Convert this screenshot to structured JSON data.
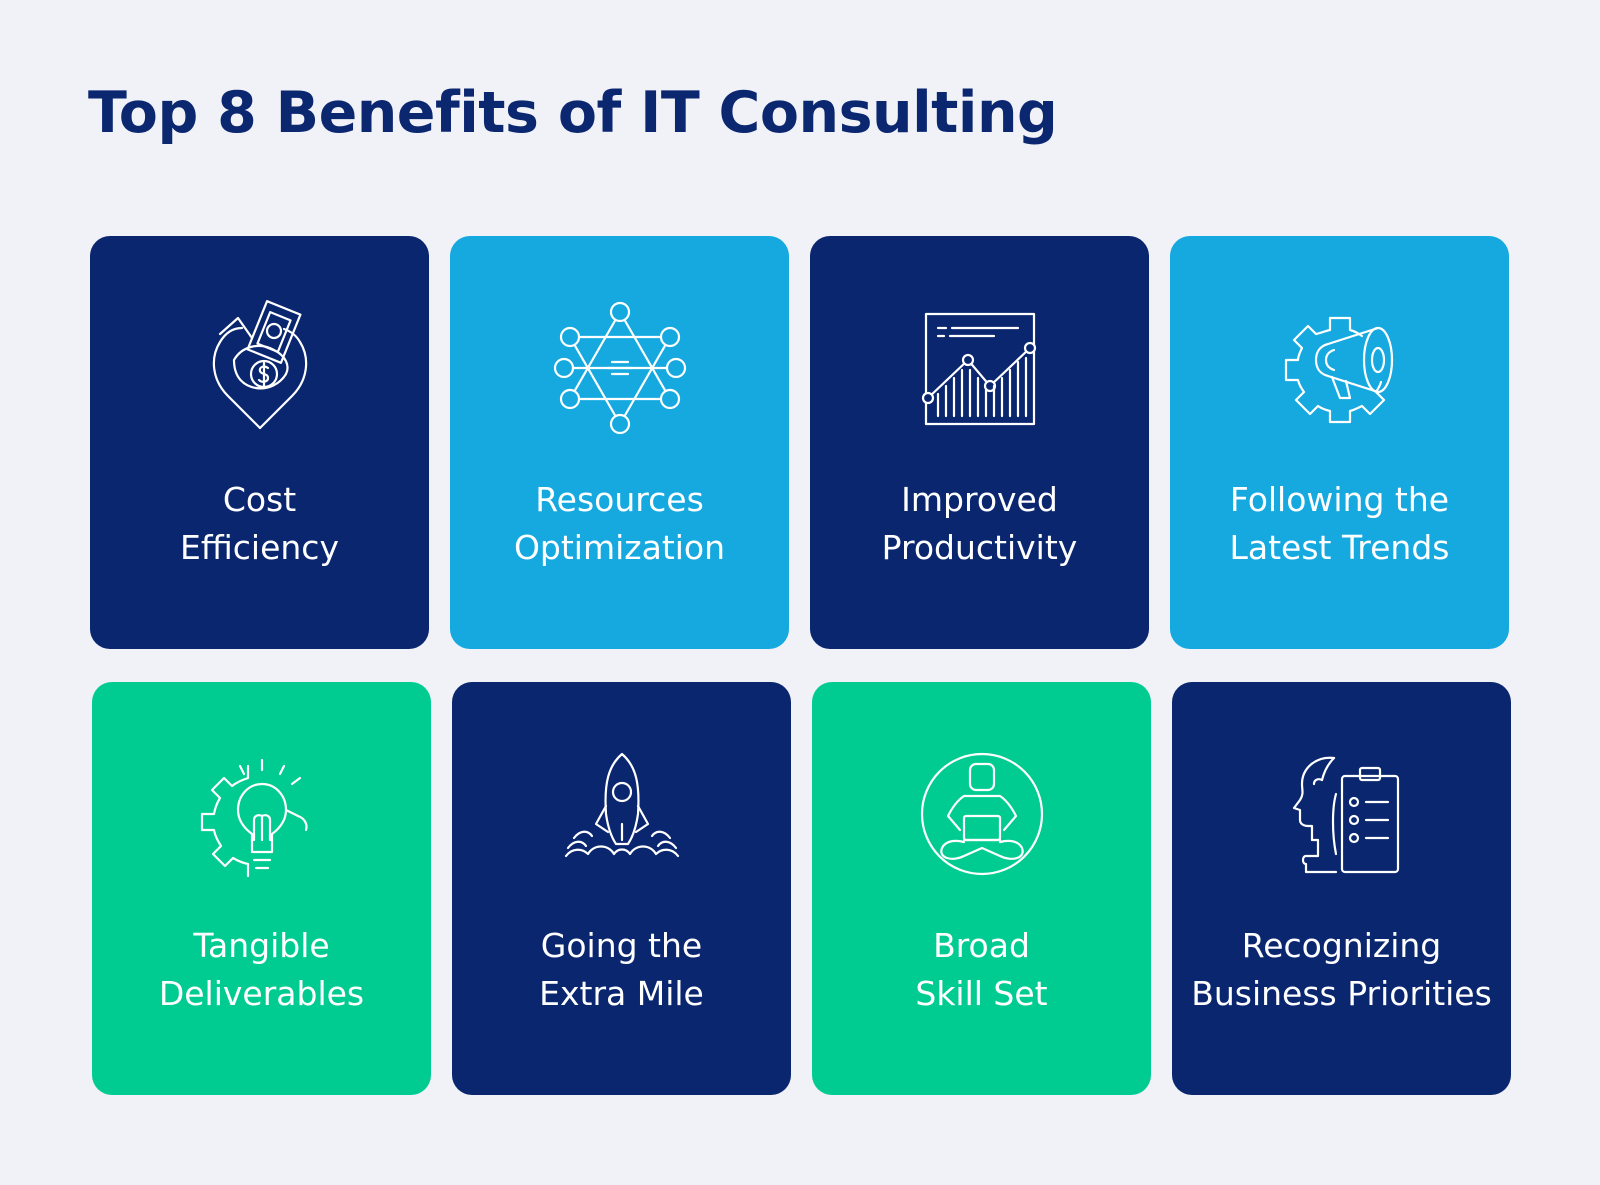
{
  "title": "Top 8 Benefits of IT Consulting",
  "colors": {
    "background": "#f1f2f7",
    "title": "#0b2770",
    "navy": "#09266f",
    "blue": "#15a9e0",
    "green": "#00cc92",
    "text": "#ffffff"
  },
  "cards": [
    {
      "icon": "money-shield-icon",
      "color": "navy",
      "line1": "Cost",
      "line2": "Efficiency"
    },
    {
      "icon": "network-star-icon",
      "color": "blue",
      "line1": "Resources",
      "line2": "Optimization"
    },
    {
      "icon": "growth-chart-icon",
      "color": "navy",
      "line1": "Improved",
      "line2": "Productivity"
    },
    {
      "icon": "gear-megaphone-icon",
      "color": "blue",
      "line1": "Following the",
      "line2": "Latest Trends"
    },
    {
      "icon": "gear-lightbulb-icon",
      "color": "green",
      "line1": "Tangible",
      "line2": "Deliverables"
    },
    {
      "icon": "rocket-launch-icon",
      "color": "navy",
      "line1": "Going the",
      "line2": "Extra Mile"
    },
    {
      "icon": "person-laptop-icon",
      "color": "green",
      "line1": "Broad",
      "line2": "Skill Set"
    },
    {
      "icon": "head-checklist-icon",
      "color": "navy",
      "line1": "Recognizing",
      "line2": "Business Priorities"
    }
  ]
}
